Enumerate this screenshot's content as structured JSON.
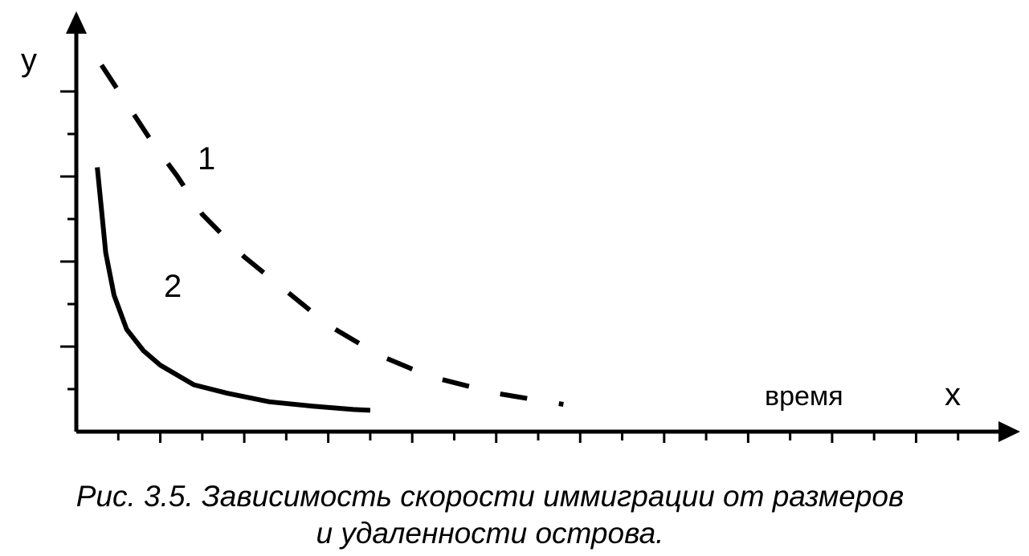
{
  "chart_data": {
    "type": "line",
    "xlabel": "x",
    "ylabel": "y",
    "x_axis_note": "время",
    "series": [
      {
        "name": "1",
        "style": "dashed",
        "x": [
          0.3,
          0.6,
          0.9,
          1.2,
          1.5,
          2.0,
          2.5,
          3.0,
          3.6,
          4.2,
          5.0,
          5.8
        ],
        "y": [
          4.3,
          3.85,
          3.4,
          3.0,
          2.55,
          2.05,
          1.65,
          1.25,
          0.9,
          0.65,
          0.45,
          0.32
        ]
      },
      {
        "name": "2",
        "style": "solid",
        "x": [
          0.25,
          0.3,
          0.35,
          0.45,
          0.6,
          0.8,
          1.0,
          1.4,
          1.8,
          2.3,
          2.8,
          3.3,
          3.5
        ],
        "y": [
          3.1,
          2.6,
          2.1,
          1.6,
          1.2,
          0.95,
          0.78,
          0.55,
          0.45,
          0.35,
          0.3,
          0.26,
          0.25
        ]
      }
    ],
    "xlim": [
      0,
      11
    ],
    "ylim": [
      0,
      4.8
    ],
    "x_ticks_minor": 22,
    "y_ticks": 8,
    "grid": false
  },
  "caption": {
    "line1": "Рис. 3.5. Зависимость скорости иммиграции от размеров",
    "line2": "и удаленности острова."
  },
  "colors": {
    "ink": "#000000",
    "background": "#ffffff"
  }
}
